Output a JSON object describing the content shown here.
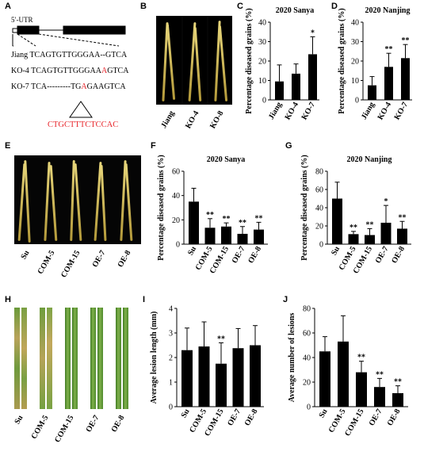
{
  "panel_labels": [
    "A",
    "B",
    "C",
    "D",
    "E",
    "F",
    "G",
    "H",
    "I",
    "J"
  ],
  "panel_a": {
    "utr_label": "5′-UTR",
    "rows": [
      {
        "name": "Jiang",
        "seq_parts": [
          {
            "t": "TCAGTGTTGGGAA--GTCA",
            "red": false
          }
        ]
      },
      {
        "name": "KO-4",
        "seq_parts": [
          {
            "t": "TCAGTGTTGGGAA",
            "red": false
          },
          {
            "t": "A",
            "red": true
          },
          {
            "t": "GTCA",
            "red": false
          }
        ]
      },
      {
        "name": "KO-7",
        "seq_parts": [
          {
            "t": "TCA---------TG",
            "red": false
          },
          {
            "t": "A",
            "red": true
          },
          {
            "t": "GAA",
            "red": false
          },
          {
            "t": "GTCA",
            "red": false
          }
        ]
      }
    ],
    "insertion": "CTGCTTTCTCCAC",
    "colors": {
      "mutation": "#e8262b"
    }
  },
  "photo_b_labels": [
    "Jiang",
    "KO-4",
    "KO-8"
  ],
  "photo_e_labels": [
    "Su",
    "COM-5",
    "COM-15",
    "OE-7",
    "OE-8"
  ],
  "photo_h_labels": [
    "Su",
    "COM-5",
    "COM-15",
    "OE-7",
    "OE-8"
  ],
  "chart_data": [
    {
      "id": "C",
      "type": "bar",
      "title": "2020 Sanya",
      "ylabel": "Percentage diseased grains (%)",
      "categories": [
        "Jiang",
        "KO-4",
        "KO-7"
      ],
      "values": [
        9.5,
        13.5,
        23.5
      ],
      "errors": [
        8.5,
        5,
        9
      ],
      "ylim": [
        0,
        40
      ],
      "yticks": [
        0,
        10,
        20,
        30,
        40
      ],
      "sig": [
        "",
        "",
        "*"
      ]
    },
    {
      "id": "D",
      "type": "bar",
      "title": "2020 Nanjing",
      "ylabel": "Percentage diseased grains (%)",
      "categories": [
        "Jiang",
        "KO-4",
        "KO-7"
      ],
      "values": [
        7.5,
        17,
        21.5
      ],
      "errors": [
        4.5,
        7,
        7
      ],
      "ylim": [
        0,
        40
      ],
      "yticks": [
        0,
        10,
        20,
        30,
        40
      ],
      "sig": [
        "",
        "**",
        "**"
      ]
    },
    {
      "id": "F",
      "type": "bar",
      "title": "2020 Sanya",
      "ylabel": "Percentage diseased grains (%)",
      "categories": [
        "Su",
        "COM-5",
        "COM-15",
        "OE-7",
        "OE-8"
      ],
      "values": [
        35,
        13.5,
        14.5,
        8.5,
        12
      ],
      "errors": [
        11,
        7.5,
        3,
        6,
        6
      ],
      "ylim": [
        0,
        60
      ],
      "yticks": [
        0,
        20,
        40,
        60
      ],
      "sig": [
        "",
        "**",
        "**",
        "**",
        "**"
      ]
    },
    {
      "id": "G",
      "type": "bar",
      "title": "2020 Nanjing",
      "ylabel": "Percentage diseased grains (%)",
      "categories": [
        "Su",
        "COM-5",
        "COM-15",
        "OE-7",
        "OE-8"
      ],
      "values": [
        50,
        11,
        10,
        23.5,
        17
      ],
      "errors": [
        18,
        3,
        7,
        19,
        8
      ],
      "ylim": [
        0,
        80
      ],
      "yticks": [
        0,
        20,
        40,
        60,
        80
      ],
      "sig": [
        "",
        "**",
        "**",
        "*",
        "**"
      ]
    },
    {
      "id": "I",
      "type": "bar",
      "title": "",
      "ylabel": "Average lesion length (mm)",
      "categories": [
        "Su",
        "COM-5",
        "COM-15",
        "OE-7",
        "OE-8"
      ],
      "values": [
        2.3,
        2.45,
        1.75,
        2.38,
        2.5
      ],
      "errors": [
        0.9,
        1.0,
        0.85,
        0.8,
        0.8
      ],
      "ylim": [
        0,
        4
      ],
      "yticks": [
        0,
        1,
        2,
        3,
        4
      ],
      "sig": [
        "",
        "",
        "**",
        "",
        ""
      ]
    },
    {
      "id": "J",
      "type": "bar",
      "title": "",
      "ylabel": "Average number of lesions",
      "categories": [
        "Su",
        "COM-5",
        "COM-15",
        "OE-7",
        "OE-8"
      ],
      "values": [
        45,
        53,
        28,
        16,
        11
      ],
      "errors": [
        12,
        21,
        9,
        7,
        6
      ],
      "ylim": [
        0,
        80
      ],
      "yticks": [
        0,
        20,
        40,
        60,
        80
      ],
      "sig": [
        "",
        "",
        "**",
        "**",
        "**"
      ]
    }
  ]
}
